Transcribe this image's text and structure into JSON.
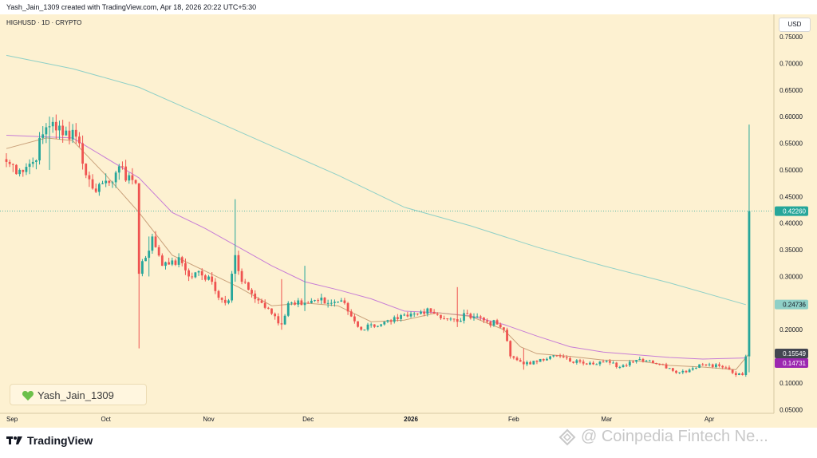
{
  "header": {
    "caption": "Yash_Jain_1309 created with TradingView.com, Apr 18, 2026 20:22 UTC+5:30"
  },
  "symbol_line": "HIGHUSD · 1D · CRYPTO",
  "currency": "USD",
  "badge": {
    "text": "Yash_Jain_1309",
    "icon": "green-heart-icon"
  },
  "footer": {
    "brand": "TradingView",
    "watermark": "@ Coinpedia Fintech Ne..."
  },
  "colors": {
    "background": "#fdf1d1",
    "up": "#26a69a",
    "down": "#ef5350",
    "ma_short": "#c9a07a",
    "ma_mid": "#c77dd6",
    "ma_long": "#8fd0c7",
    "last_price_label": "#26a69a",
    "ma_short_label": "#434651",
    "ma_mid_label": "#9c27b0"
  },
  "chart_data": {
    "type": "candlestick",
    "price_axis": {
      "range": [
        0.04,
        0.76
      ],
      "ticks": [
        "0.75000",
        "0.70000",
        "0.65000",
        "0.60000",
        "0.55000",
        "0.50000",
        "0.45000",
        "0.40000",
        "0.35000",
        "0.30000",
        "0.25000",
        "0.20000",
        "0.15000",
        "0.10000",
        "0.05000"
      ],
      "tick_values": [
        0.75,
        0.7,
        0.65,
        0.6,
        0.55,
        0.5,
        0.45,
        0.4,
        0.35,
        0.3,
        0.25,
        0.2,
        0.15,
        0.1,
        0.05
      ]
    },
    "time_axis": {
      "labels": [
        "Sep",
        "Oct",
        "Nov",
        "Dec",
        "2026",
        "Feb",
        "Mar",
        "Apr"
      ],
      "label_days": [
        0,
        30,
        61,
        91,
        122,
        153,
        181,
        212
      ]
    },
    "price_labels": [
      {
        "name": "last",
        "value": "0.42260",
        "num": 0.4226
      },
      {
        "name": "ma_long",
        "value": "0.24736",
        "num": 0.24736
      },
      {
        "name": "ma_short",
        "value": "0.15549",
        "num": 0.15549
      },
      {
        "name": "ma_mid",
        "value": "0.14731",
        "num": 0.14731
      }
    ],
    "anchors": [
      [
        0,
        0.515
      ],
      [
        4,
        0.5
      ],
      [
        8,
        0.515
      ],
      [
        12,
        0.58
      ],
      [
        14,
        0.59
      ],
      [
        17,
        0.565
      ],
      [
        20,
        0.575
      ],
      [
        22,
        0.55
      ],
      [
        24,
        0.49
      ],
      [
        26,
        0.465
      ],
      [
        29,
        0.475
      ],
      [
        33,
        0.495
      ],
      [
        37,
        0.49
      ],
      [
        39,
        0.475
      ],
      [
        40,
        0.305
      ],
      [
        42,
        0.335
      ],
      [
        44,
        0.375
      ],
      [
        47,
        0.32
      ],
      [
        50,
        0.33
      ],
      [
        53,
        0.325
      ],
      [
        55,
        0.3
      ],
      [
        58,
        0.31
      ],
      [
        62,
        0.29
      ],
      [
        64,
        0.26
      ],
      [
        67,
        0.255
      ],
      [
        69,
        0.34
      ],
      [
        71,
        0.29
      ],
      [
        73,
        0.275
      ],
      [
        76,
        0.255
      ],
      [
        80,
        0.23
      ],
      [
        83,
        0.21
      ],
      [
        85,
        0.25
      ],
      [
        88,
        0.255
      ],
      [
        91,
        0.25
      ],
      [
        94,
        0.255
      ],
      [
        97,
        0.25
      ],
      [
        101,
        0.255
      ],
      [
        104,
        0.225
      ],
      [
        107,
        0.2
      ],
      [
        110,
        0.21
      ],
      [
        113,
        0.21
      ],
      [
        116,
        0.215
      ],
      [
        118,
        0.22
      ],
      [
        121,
        0.225
      ],
      [
        124,
        0.23
      ],
      [
        127,
        0.24
      ],
      [
        130,
        0.228
      ],
      [
        133,
        0.22
      ],
      [
        136,
        0.215
      ],
      [
        139,
        0.23
      ],
      [
        142,
        0.225
      ],
      [
        145,
        0.215
      ],
      [
        148,
        0.21
      ],
      [
        150,
        0.2
      ],
      [
        152,
        0.15
      ],
      [
        155,
        0.14
      ],
      [
        158,
        0.135
      ],
      [
        161,
        0.145
      ],
      [
        164,
        0.15
      ],
      [
        167,
        0.15
      ],
      [
        170,
        0.14
      ],
      [
        173,
        0.14
      ],
      [
        176,
        0.138
      ],
      [
        179,
        0.14
      ],
      [
        182,
        0.138
      ],
      [
        185,
        0.13
      ],
      [
        188,
        0.14
      ],
      [
        191,
        0.145
      ],
      [
        194,
        0.142
      ],
      [
        197,
        0.135
      ],
      [
        200,
        0.128
      ],
      [
        203,
        0.12
      ],
      [
        206,
        0.125
      ],
      [
        209,
        0.135
      ],
      [
        212,
        0.135
      ],
      [
        215,
        0.132
      ],
      [
        218,
        0.125
      ],
      [
        220,
        0.115
      ],
      [
        222,
        0.115
      ],
      [
        223,
        0.15
      ],
      [
        224,
        0.4226
      ]
    ],
    "wick_spikes": [
      {
        "day": 13,
        "high": 0.6,
        "low": 0.5
      },
      {
        "day": 40,
        "high": 0.47,
        "low": 0.165
      },
      {
        "day": 43,
        "high": 0.375,
        "low": 0.3
      },
      {
        "day": 69,
        "high": 0.445,
        "low": 0.29
      },
      {
        "day": 83,
        "high": 0.295,
        "low": 0.2
      },
      {
        "day": 90,
        "high": 0.32,
        "low": 0.235
      },
      {
        "day": 136,
        "high": 0.28,
        "low": 0.205
      },
      {
        "day": 156,
        "high": 0.165,
        "low": 0.125
      },
      {
        "day": 224,
        "high": 0.585,
        "low": 0.12
      }
    ],
    "moving_averages": [
      {
        "name": "ma_long",
        "points": [
          [
            0,
            0.715
          ],
          [
            20,
            0.69
          ],
          [
            40,
            0.655
          ],
          [
            60,
            0.6
          ],
          [
            80,
            0.545
          ],
          [
            100,
            0.49
          ],
          [
            120,
            0.43
          ],
          [
            140,
            0.395
          ],
          [
            160,
            0.355
          ],
          [
            180,
            0.32
          ],
          [
            200,
            0.288
          ],
          [
            223,
            0.247
          ]
        ]
      },
      {
        "name": "ma_mid",
        "points": [
          [
            0,
            0.565
          ],
          [
            20,
            0.56
          ],
          [
            40,
            0.485
          ],
          [
            50,
            0.42
          ],
          [
            60,
            0.39
          ],
          [
            70,
            0.355
          ],
          [
            80,
            0.32
          ],
          [
            90,
            0.29
          ],
          [
            100,
            0.275
          ],
          [
            110,
            0.258
          ],
          [
            120,
            0.235
          ],
          [
            130,
            0.232
          ],
          [
            140,
            0.226
          ],
          [
            150,
            0.21
          ],
          [
            160,
            0.188
          ],
          [
            170,
            0.168
          ],
          [
            180,
            0.158
          ],
          [
            190,
            0.153
          ],
          [
            200,
            0.148
          ],
          [
            210,
            0.145
          ],
          [
            223,
            0.147
          ]
        ]
      },
      {
        "name": "ma_short",
        "points": [
          [
            0,
            0.54
          ],
          [
            12,
            0.56
          ],
          [
            20,
            0.555
          ],
          [
            30,
            0.49
          ],
          [
            40,
            0.42
          ],
          [
            50,
            0.34
          ],
          [
            60,
            0.31
          ],
          [
            70,
            0.28
          ],
          [
            80,
            0.245
          ],
          [
            90,
            0.25
          ],
          [
            100,
            0.245
          ],
          [
            110,
            0.215
          ],
          [
            120,
            0.218
          ],
          [
            130,
            0.232
          ],
          [
            140,
            0.225
          ],
          [
            150,
            0.2
          ],
          [
            155,
            0.168
          ],
          [
            160,
            0.155
          ],
          [
            170,
            0.15
          ],
          [
            180,
            0.143
          ],
          [
            190,
            0.142
          ],
          [
            200,
            0.133
          ],
          [
            210,
            0.13
          ],
          [
            220,
            0.125
          ],
          [
            224,
            0.155
          ]
        ]
      }
    ]
  }
}
